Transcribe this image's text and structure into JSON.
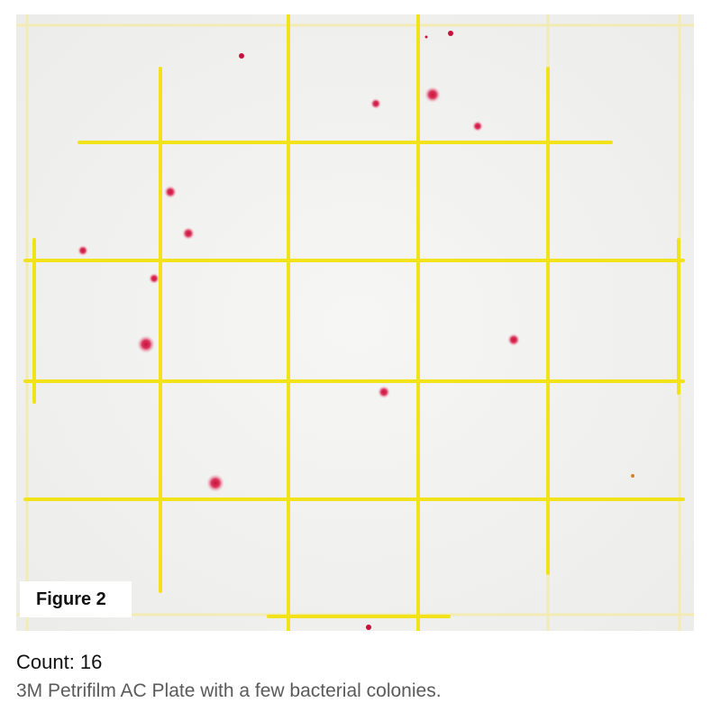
{
  "figure": {
    "label": "Figure 2",
    "count_text": "Count: 16",
    "description": "3M Petrifilm AC Plate with a few bacterial colonies."
  },
  "plate": {
    "colony_count": 16,
    "grid_color": "#f2e21a",
    "grid_faint_color": "#f3ebb0",
    "colony_color": "#d0113f",
    "background_color": "#f4f4f3"
  }
}
